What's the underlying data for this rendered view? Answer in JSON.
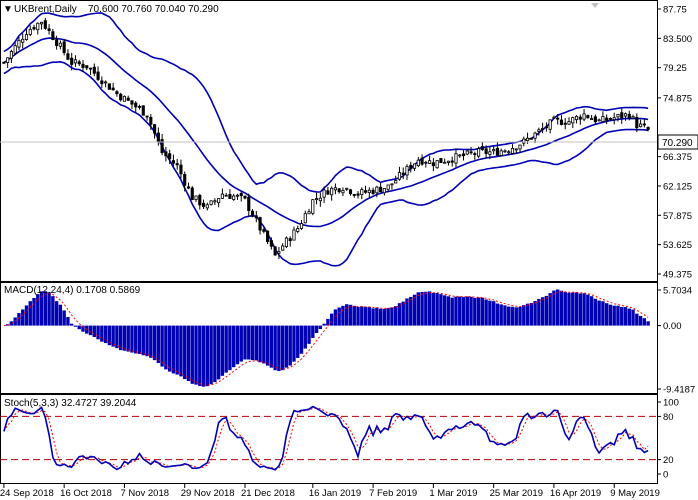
{
  "header": {
    "menu_glyph": "▼",
    "symbol": "UKBrent,Daily",
    "ohlc": "70.600 70.760 70.040 70.290"
  },
  "main_panel": {
    "price_axis_labels": [
      "87.75",
      "83.500",
      "79.25",
      "74.875",
      "70.290",
      "66.375",
      "62.125",
      "57.875",
      "53.625",
      "49.375"
    ],
    "current_price_tag": "70.290"
  },
  "macd_panel": {
    "title": "MACD(12,24,4) 0.1708 0.5869",
    "axis_labels": [
      "5.7034",
      "0.00",
      "-9.4187"
    ],
    "bar_color": "#0000b4",
    "signal_color": "#ff0000"
  },
  "stoch_panel": {
    "title": "Stoch(5,3,3) 32.4727 39.2044",
    "axis_labels": [
      "100",
      "80",
      "20",
      "0"
    ],
    "main_color": "#0000b4",
    "signal_color": "#ff0000",
    "level_color": "#b40000"
  },
  "date_axis": {
    "labels": [
      "24 Sep 2018",
      "16 Oct 2018",
      "7 Nov 2018",
      "29 Nov 2018",
      "21 Dec 2018",
      "16 Jan 2019",
      "7 Feb 2019",
      "1 Mar 2019",
      "25 Mar 2019",
      "16 Apr 2019",
      "9 May 2019"
    ]
  },
  "chart_data": {
    "type": "candlestick",
    "instrument": "UKBrent",
    "timeframe": "Daily",
    "last": {
      "open": 70.6,
      "high": 70.76,
      "low": 70.04,
      "close": 70.29
    },
    "price_axis": [
      49.375,
      87.75
    ],
    "x_dates": [
      "24 Sep 2018",
      "16 Oct 2018",
      "7 Nov 2018",
      "29 Nov 2018",
      "21 Dec 2018",
      "16 Jan 2019",
      "7 Feb 2019",
      "1 Mar 2019",
      "25 Mar 2019",
      "16 Apr 2019",
      "9 May 2019"
    ],
    "close_path_approx": [
      [
        0,
        80.0
      ],
      [
        6,
        84.5
      ],
      [
        10,
        86.0
      ],
      [
        14,
        83.0
      ],
      [
        18,
        80.0
      ],
      [
        22,
        79.5
      ],
      [
        26,
        77.5
      ],
      [
        30,
        75.5
      ],
      [
        34,
        74.0
      ],
      [
        38,
        72.5
      ],
      [
        42,
        67.0
      ],
      [
        46,
        65.0
      ],
      [
        50,
        60.5
      ],
      [
        54,
        59.0
      ],
      [
        58,
        61.0
      ],
      [
        62,
        60.5
      ],
      [
        64,
        60.0
      ],
      [
        68,
        56.0
      ],
      [
        72,
        52.0
      ],
      [
        74,
        53.5
      ],
      [
        78,
        56.0
      ],
      [
        82,
        60.0
      ],
      [
        86,
        61.5
      ],
      [
        90,
        62.0
      ],
      [
        94,
        61.0
      ],
      [
        98,
        61.5
      ],
      [
        102,
        62.0
      ],
      [
        106,
        64.0
      ],
      [
        110,
        66.0
      ],
      [
        114,
        65.5
      ],
      [
        118,
        66.0
      ],
      [
        122,
        66.5
      ],
      [
        126,
        67.0
      ],
      [
        130,
        67.0
      ],
      [
        134,
        67.5
      ],
      [
        138,
        68.5
      ],
      [
        142,
        70.0
      ],
      [
        146,
        71.5
      ],
      [
        150,
        71.5
      ],
      [
        154,
        72.5
      ],
      [
        158,
        71.5
      ],
      [
        162,
        72.0
      ],
      [
        166,
        72.5
      ],
      [
        168,
        71.0
      ],
      [
        171,
        70.3
      ]
    ],
    "bollinger": {
      "period": "unlabeled",
      "color": "#0000b4"
    },
    "macd": {
      "label": "MACD(12,24,4)",
      "macd": 0.1708,
      "signal": 0.5869,
      "axis": [
        -9.4187,
        5.7034
      ]
    },
    "stochastic": {
      "label": "Stoch(5,3,3)",
      "k": 32.4727,
      "d": 39.2044,
      "levels": [
        20,
        80
      ],
      "axis": [
        0,
        100
      ]
    }
  }
}
